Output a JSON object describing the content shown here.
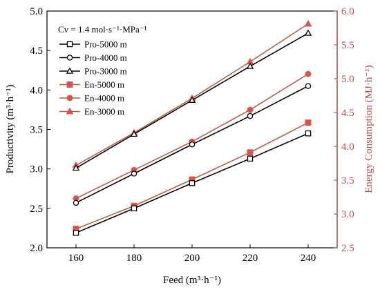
{
  "chart_data": {
    "type": "line",
    "annotation": "Cv = 1.4 mol·s⁻¹·MPa⁻¹",
    "xlabel": "Feed (m³·h⁻¹)",
    "ylabel_left": "Productivity (m³·h⁻¹)",
    "ylabel_right": "Energy Consumption (MJ·h⁻¹)",
    "x": [
      160,
      180,
      200,
      220,
      240
    ],
    "x_ticks": [
      "160",
      "180",
      "200",
      "220",
      "240"
    ],
    "xlim": [
      150,
      250
    ],
    "ylim_left": [
      2.0,
      5.0
    ],
    "ylim_right": [
      2.5,
      6.0
    ],
    "left_ticks": [
      "2.0",
      "2.5",
      "3.0",
      "3.5",
      "4.0",
      "4.5",
      "5.0"
    ],
    "right_ticks": [
      "2.5",
      "3.0",
      "3.5",
      "4.0",
      "4.5",
      "5.0",
      "5.5",
      "6.0"
    ],
    "legend_position": "top-left",
    "grid": false,
    "colors": {
      "productivity": "#000000",
      "energy_line": "#b5604c",
      "energy_marker": "#d9534f",
      "right_axis": "#c0504d"
    },
    "series": [
      {
        "name": "Pro-5000 m",
        "axis": "left",
        "marker": "square",
        "values": [
          2.19,
          2.5,
          2.82,
          3.13,
          3.45
        ]
      },
      {
        "name": "Pro-4000 m",
        "axis": "left",
        "marker": "circle",
        "values": [
          2.57,
          2.94,
          3.31,
          3.67,
          4.05
        ]
      },
      {
        "name": "Pro-3000 m",
        "axis": "left",
        "marker": "triangle",
        "values": [
          3.01,
          3.44,
          3.87,
          4.3,
          4.72
        ]
      },
      {
        "name": "En-5000 m",
        "axis": "right",
        "marker": "square",
        "values": [
          2.78,
          3.12,
          3.51,
          3.91,
          4.35
        ]
      },
      {
        "name": "En-4000 m",
        "axis": "right",
        "marker": "circle",
        "values": [
          3.23,
          3.65,
          4.07,
          4.54,
          5.07
        ]
      },
      {
        "name": "En-3000 m",
        "axis": "right",
        "marker": "triangle",
        "values": [
          3.72,
          4.2,
          4.71,
          5.25,
          5.81
        ]
      }
    ]
  }
}
